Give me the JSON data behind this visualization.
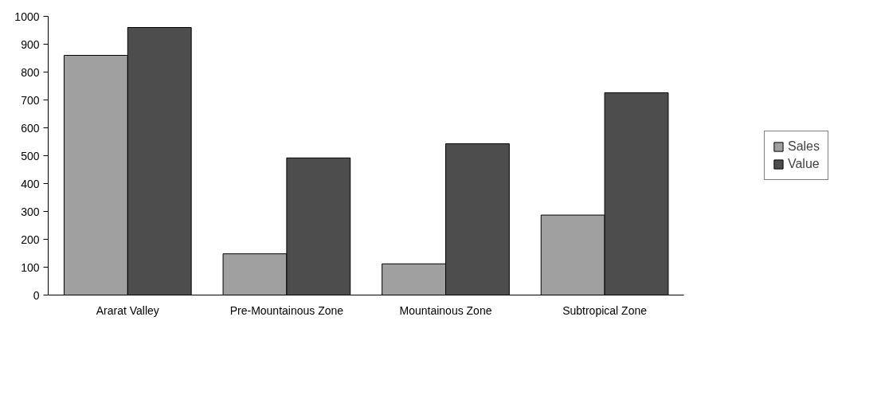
{
  "chart_data": {
    "type": "bar",
    "categories": [
      "Ararat Valley",
      "Pre-Mountainous Zone",
      "Mountainous Zone",
      "Subtropical Zone"
    ],
    "series": [
      {
        "name": "Sales",
        "color": "#a0a0a0",
        "values": [
          860,
          148,
          112,
          287
        ]
      },
      {
        "name": "Value",
        "color": "#4d4d4d",
        "values": [
          960,
          492,
          543,
          726
        ]
      }
    ],
    "ylim": [
      0,
      1000
    ],
    "yticks": [
      0,
      100,
      200,
      300,
      400,
      500,
      600,
      700,
      800,
      900,
      1000
    ],
    "grid": false,
    "legend": "right"
  }
}
